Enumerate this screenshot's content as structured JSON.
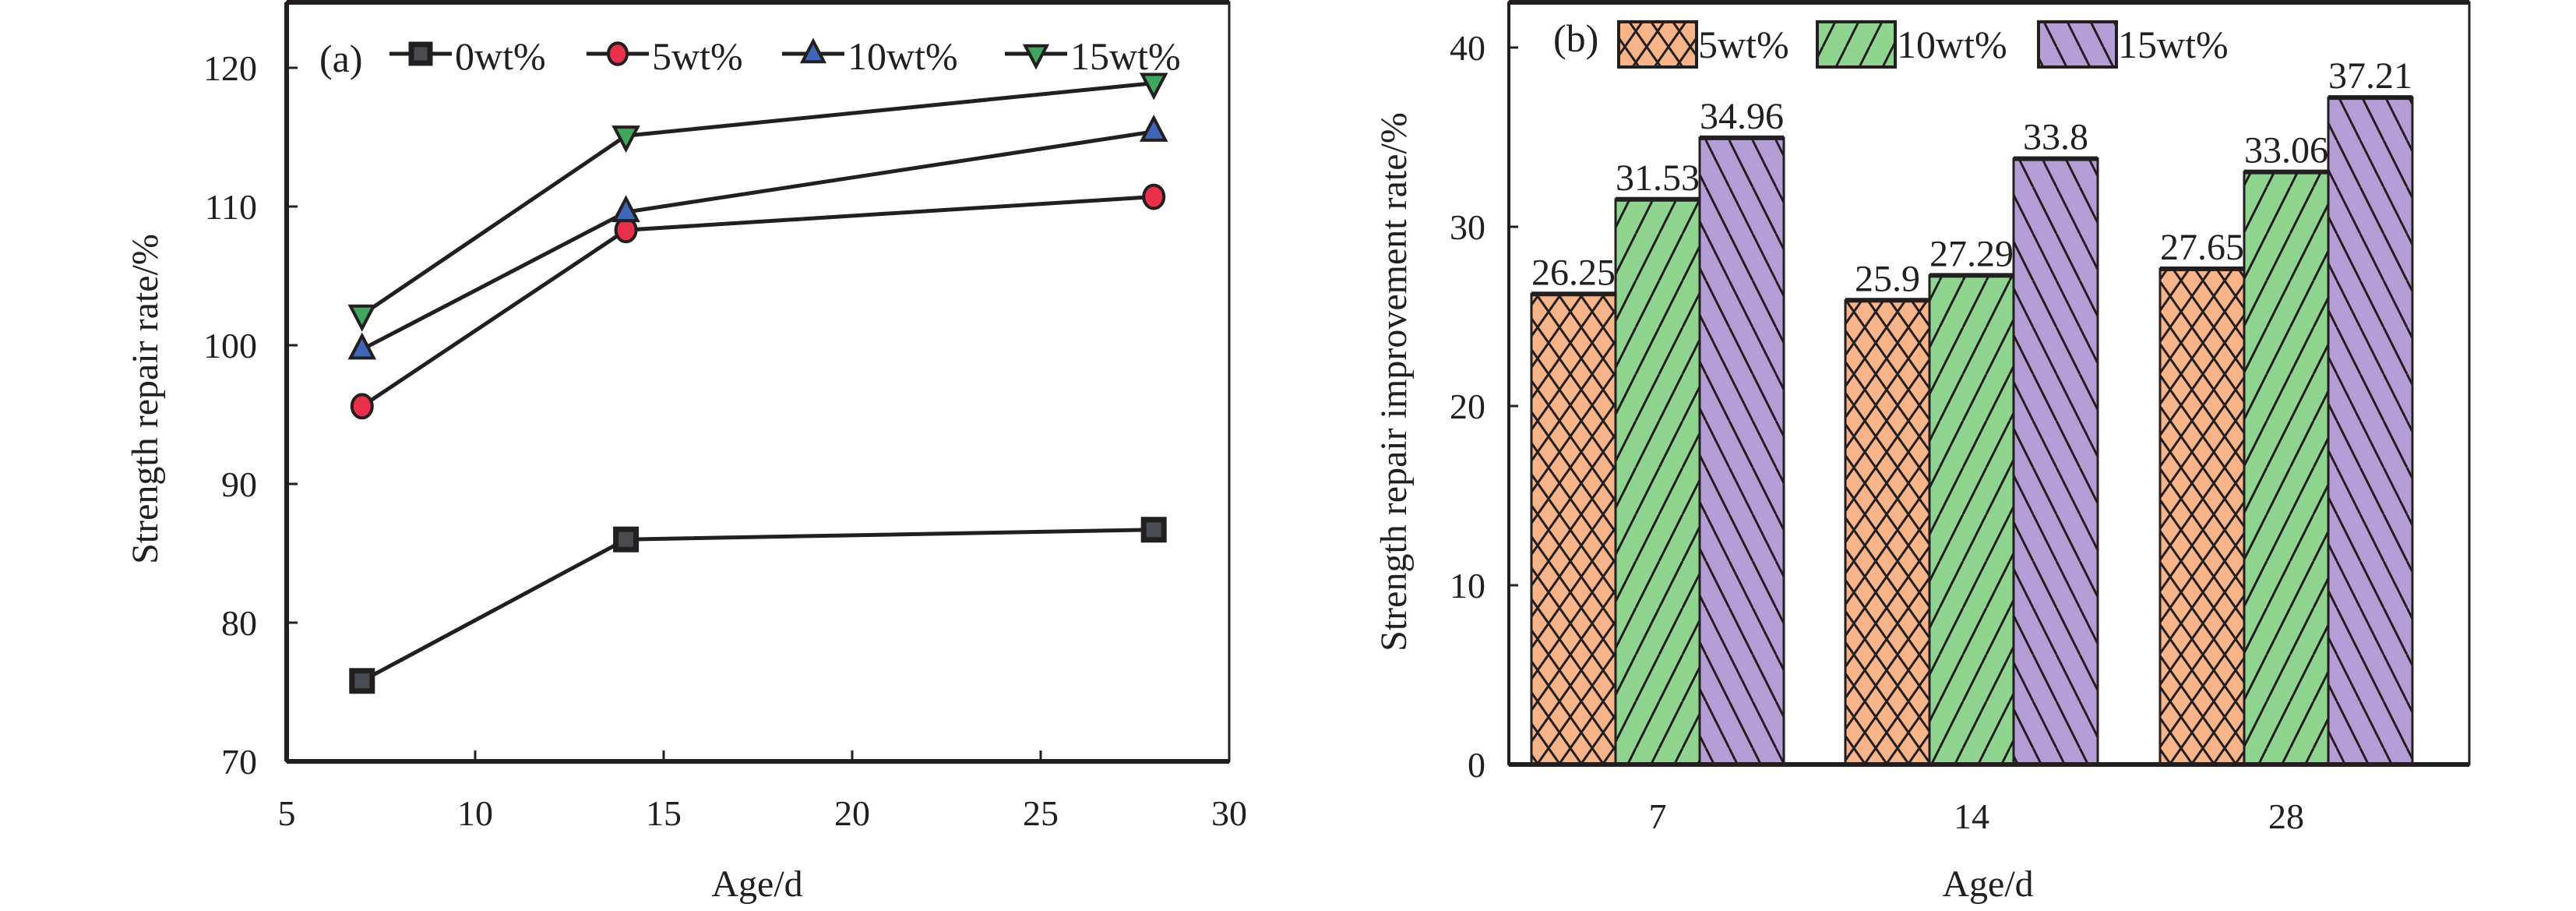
{
  "chart_data": [
    {
      "type": "line",
      "panel_label": "(a)",
      "title": "",
      "xlabel": "Age/d",
      "ylabel": "Strength repair rate/%",
      "xlim": [
        5,
        30
      ],
      "ylim": [
        70,
        125
      ],
      "xticks": [
        5,
        10,
        15,
        20,
        25,
        30
      ],
      "yticks": [
        70,
        80,
        90,
        100,
        110,
        120
      ],
      "grid": false,
      "legend_position": "top",
      "x": [
        7,
        14,
        28
      ],
      "series": [
        {
          "name": "0wt%",
          "marker": "square",
          "color": "#4a4b50",
          "values": [
            75.8,
            86.0,
            86.7
          ]
        },
        {
          "name": "5wt%",
          "marker": "circle",
          "color": "#e8304a",
          "values": [
            95.6,
            108.3,
            110.7
          ]
        },
        {
          "name": "10wt%",
          "marker": "triangle-up",
          "color": "#3f67b8",
          "values": [
            99.7,
            109.6,
            115.4
          ]
        },
        {
          "name": "15wt%",
          "marker": "triangle-down",
          "color": "#3fa65d",
          "values": [
            102.2,
            115.1,
            118.9
          ]
        }
      ]
    },
    {
      "type": "bar",
      "panel_label": "(b)",
      "title": "",
      "xlabel": "Age/d",
      "ylabel": "Strength repair improvement rate/%",
      "categories": [
        "7",
        "14",
        "28"
      ],
      "ylim": [
        0,
        42
      ],
      "yticks": [
        0,
        10,
        20,
        30,
        40
      ],
      "grid": false,
      "legend_position": "top-left",
      "series": [
        {
          "name": "5wt%",
          "pattern": "crosshatch",
          "color": "#f6b488",
          "values": [
            26.25,
            25.9,
            27.65
          ],
          "labels": [
            "26.25",
            "25.9",
            "27.65"
          ]
        },
        {
          "name": "10wt%",
          "pattern": "forward-diagonal",
          "color": "#8fd48f",
          "values": [
            31.53,
            27.29,
            33.06
          ],
          "labels": [
            "31.53",
            "27.29",
            "33.06"
          ]
        },
        {
          "name": "15wt%",
          "pattern": "back-diagonal",
          "color": "#b39fd6",
          "values": [
            34.96,
            33.8,
            37.21
          ],
          "labels": [
            "34.96",
            "33.8",
            "37.21"
          ]
        }
      ]
    }
  ]
}
